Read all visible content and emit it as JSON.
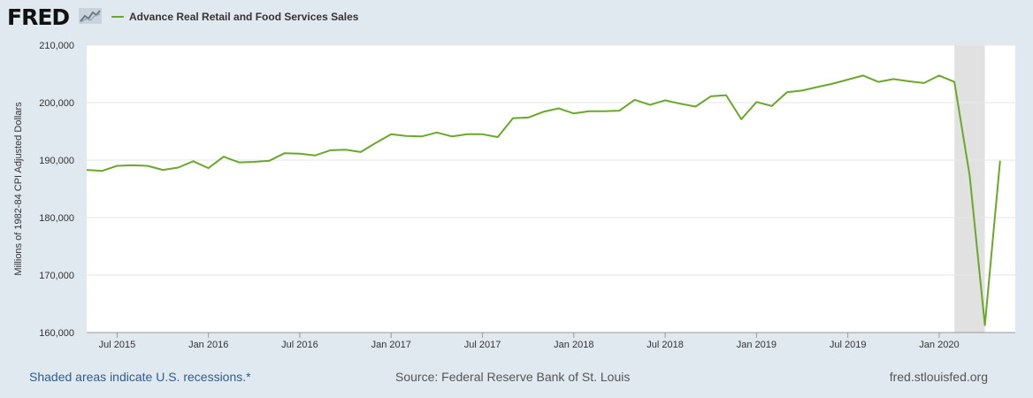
{
  "header": {
    "logo_text": "FRED",
    "logo_mark_icon": "trend-line-icon"
  },
  "colors": {
    "series": "#6aa82a",
    "recession_shade": "#e1e1e1",
    "background": "#e1e9f0",
    "plot_background": "#ffffff",
    "grid": "#e6e6e6"
  },
  "footer": {
    "recession_note": "Shaded areas indicate U.S. recessions.*",
    "source": "Source: Federal Reserve Bank of St. Louis",
    "site": "fred.stlouisfed.org"
  },
  "chart_data": {
    "type": "line",
    "title": "",
    "xlabel": "",
    "ylabel": "Millions of 1982-84 CPI Adjusted Dollars",
    "ylim": [
      160000,
      210000
    ],
    "xlim": [
      "2015-05",
      "2020-06"
    ],
    "grid": true,
    "legend_position": "top-left",
    "y_ticks": [
      "160,000",
      "170,000",
      "180,000",
      "190,000",
      "200,000",
      "210,000"
    ],
    "x_ticks": [
      {
        "label": "Jul 2015",
        "date": "2015-07"
      },
      {
        "label": "Jan 2016",
        "date": "2016-01"
      },
      {
        "label": "Jul 2016",
        "date": "2016-07"
      },
      {
        "label": "Jan 2017",
        "date": "2017-01"
      },
      {
        "label": "Jul 2017",
        "date": "2017-07"
      },
      {
        "label": "Jan 2018",
        "date": "2018-01"
      },
      {
        "label": "Jul 2018",
        "date": "2018-07"
      },
      {
        "label": "Jan 2019",
        "date": "2019-01"
      },
      {
        "label": "Jul 2019",
        "date": "2019-07"
      },
      {
        "label": "Jan 2020",
        "date": "2020-01"
      }
    ],
    "recessions": [
      {
        "start": "2020-02",
        "end": "2020-04"
      }
    ],
    "series": [
      {
        "name": "Advance Real Retail and Food Services Sales",
        "x": [
          "2015-05",
          "2015-06",
          "2015-07",
          "2015-08",
          "2015-09",
          "2015-10",
          "2015-11",
          "2015-12",
          "2016-01",
          "2016-02",
          "2016-03",
          "2016-04",
          "2016-05",
          "2016-06",
          "2016-07",
          "2016-08",
          "2016-09",
          "2016-10",
          "2016-11",
          "2016-12",
          "2017-01",
          "2017-02",
          "2017-03",
          "2017-04",
          "2017-05",
          "2017-06",
          "2017-07",
          "2017-08",
          "2017-09",
          "2017-10",
          "2017-11",
          "2017-12",
          "2018-01",
          "2018-02",
          "2018-03",
          "2018-04",
          "2018-05",
          "2018-06",
          "2018-07",
          "2018-08",
          "2018-09",
          "2018-10",
          "2018-11",
          "2018-12",
          "2019-01",
          "2019-02",
          "2019-03",
          "2019-04",
          "2019-05",
          "2019-06",
          "2019-07",
          "2019-08",
          "2019-09",
          "2019-10",
          "2019-11",
          "2019-12",
          "2020-01",
          "2020-02",
          "2020-03",
          "2020-04",
          "2020-05"
        ],
        "values": [
          188300,
          188100,
          189000,
          189100,
          189000,
          188300,
          188700,
          189800,
          188600,
          190600,
          189600,
          189700,
          189900,
          191200,
          191100,
          190800,
          191700,
          191800,
          191400,
          193000,
          194500,
          194200,
          194100,
          194800,
          194100,
          194500,
          194500,
          194000,
          197300,
          197400,
          198400,
          199000,
          198100,
          198500,
          198500,
          198600,
          200500,
          199600,
          200400,
          199800,
          199300,
          201100,
          201300,
          197100,
          200100,
          199400,
          201800,
          202100,
          202700,
          203300,
          204000,
          204700,
          203600,
          204100,
          203700,
          203400,
          204700,
          203600,
          187300,
          161300,
          189900
        ]
      }
    ]
  }
}
